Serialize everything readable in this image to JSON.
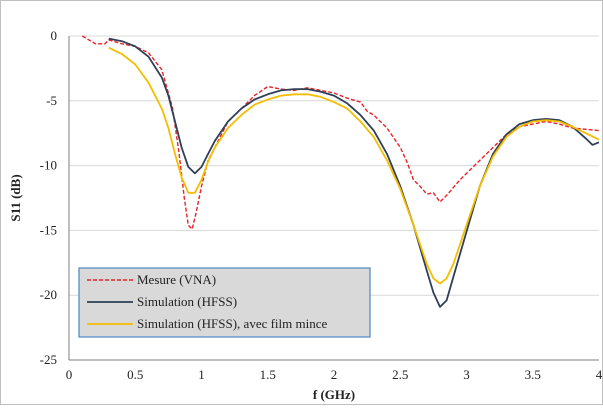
{
  "chart_data": {
    "type": "line",
    "title": "",
    "xlabel": "f (GHz)",
    "ylabel": "S11 (dB)",
    "xlim": [
      0,
      4
    ],
    "ylim": [
      -25,
      0
    ],
    "xticks": [
      "0",
      "0.5",
      "1",
      "1.5",
      "2",
      "2.5",
      "3",
      "3.5",
      "4"
    ],
    "yticks": [
      "0",
      "-5",
      "-10",
      "-15",
      "-20",
      "-25"
    ],
    "grid": "horizontal",
    "legend_position": "lower-left",
    "series": [
      {
        "name": "Mesure (VNA)",
        "color": "#e8222a",
        "style": "dashed",
        "points": [
          [
            0.1,
            0
          ],
          [
            0.15,
            -0.3
          ],
          [
            0.2,
            -0.6
          ],
          [
            0.27,
            -0.6
          ],
          [
            0.3,
            -0.3
          ],
          [
            0.4,
            -0.6
          ],
          [
            0.5,
            -0.8
          ],
          [
            0.6,
            -1.3
          ],
          [
            0.7,
            -2.6
          ],
          [
            0.78,
            -5.5
          ],
          [
            0.83,
            -9
          ],
          [
            0.87,
            -12.5
          ],
          [
            0.9,
            -14.6
          ],
          [
            0.93,
            -14.9
          ],
          [
            0.96,
            -13.6
          ],
          [
            1.0,
            -11.6
          ],
          [
            1.05,
            -9.6
          ],
          [
            1.1,
            -8.6
          ],
          [
            1.15,
            -7.6
          ],
          [
            1.2,
            -6.6
          ],
          [
            1.3,
            -5.6
          ],
          [
            1.4,
            -4.6
          ],
          [
            1.5,
            -3.9
          ],
          [
            1.6,
            -4.1
          ],
          [
            1.7,
            -4.2
          ],
          [
            1.8,
            -4.0
          ],
          [
            1.9,
            -4.2
          ],
          [
            2.0,
            -4.4
          ],
          [
            2.1,
            -4.8
          ],
          [
            2.2,
            -5.1
          ],
          [
            2.25,
            -5.8
          ],
          [
            2.3,
            -6.1
          ],
          [
            2.4,
            -7.1
          ],
          [
            2.5,
            -8.6
          ],
          [
            2.55,
            -9.7
          ],
          [
            2.6,
            -11.1
          ],
          [
            2.65,
            -11.6
          ],
          [
            2.7,
            -12.2
          ],
          [
            2.75,
            -12.1
          ],
          [
            2.8,
            -12.8
          ],
          [
            2.85,
            -12.3
          ],
          [
            2.9,
            -11.7
          ],
          [
            2.95,
            -11.1
          ],
          [
            3.0,
            -10.6
          ],
          [
            3.1,
            -9.6
          ],
          [
            3.2,
            -8.6
          ],
          [
            3.3,
            -7.6
          ],
          [
            3.4,
            -7.0
          ],
          [
            3.5,
            -6.8
          ],
          [
            3.6,
            -6.6
          ],
          [
            3.7,
            -6.8
          ],
          [
            3.8,
            -7.1
          ],
          [
            3.9,
            -7.2
          ],
          [
            4.0,
            -7.3
          ]
        ]
      },
      {
        "name": "Simulation (HFSS)",
        "color": "#2e3f56",
        "style": "solid",
        "points": [
          [
            0.3,
            -0.2
          ],
          [
            0.4,
            -0.4
          ],
          [
            0.5,
            -0.8
          ],
          [
            0.6,
            -1.6
          ],
          [
            0.7,
            -3.2
          ],
          [
            0.75,
            -4.6
          ],
          [
            0.8,
            -6.6
          ],
          [
            0.85,
            -8.6
          ],
          [
            0.9,
            -10.1
          ],
          [
            0.95,
            -10.6
          ],
          [
            1.0,
            -10.1
          ],
          [
            1.05,
            -9.1
          ],
          [
            1.1,
            -8.1
          ],
          [
            1.2,
            -6.6
          ],
          [
            1.3,
            -5.6
          ],
          [
            1.4,
            -4.9
          ],
          [
            1.5,
            -4.5
          ],
          [
            1.6,
            -4.2
          ],
          [
            1.7,
            -4.1
          ],
          [
            1.8,
            -4.1
          ],
          [
            1.9,
            -4.3
          ],
          [
            2.0,
            -4.6
          ],
          [
            2.1,
            -5.2
          ],
          [
            2.2,
            -6.1
          ],
          [
            2.3,
            -7.3
          ],
          [
            2.4,
            -9.1
          ],
          [
            2.5,
            -11.6
          ],
          [
            2.6,
            -14.6
          ],
          [
            2.7,
            -18.1
          ],
          [
            2.75,
            -19.8
          ],
          [
            2.8,
            -20.9
          ],
          [
            2.85,
            -20.4
          ],
          [
            2.9,
            -18.6
          ],
          [
            3.0,
            -15.1
          ],
          [
            3.1,
            -11.6
          ],
          [
            3.2,
            -9.1
          ],
          [
            3.3,
            -7.6
          ],
          [
            3.4,
            -6.8
          ],
          [
            3.5,
            -6.5
          ],
          [
            3.6,
            -6.4
          ],
          [
            3.7,
            -6.5
          ],
          [
            3.8,
            -7.0
          ],
          [
            3.9,
            -7.9
          ],
          [
            3.95,
            -8.4
          ],
          [
            4.0,
            -8.2
          ]
        ]
      },
      {
        "name": "Simulation (HFSS),  avec film mince",
        "color": "#f5bd00",
        "style": "solid",
        "points": [
          [
            0.3,
            -0.9
          ],
          [
            0.4,
            -1.4
          ],
          [
            0.5,
            -2.2
          ],
          [
            0.6,
            -3.6
          ],
          [
            0.7,
            -5.6
          ],
          [
            0.75,
            -7.1
          ],
          [
            0.8,
            -9.1
          ],
          [
            0.85,
            -10.9
          ],
          [
            0.9,
            -12.1
          ],
          [
            0.95,
            -12.1
          ],
          [
            1.0,
            -11.1
          ],
          [
            1.05,
            -9.7
          ],
          [
            1.1,
            -8.6
          ],
          [
            1.2,
            -7.1
          ],
          [
            1.3,
            -6.1
          ],
          [
            1.4,
            -5.3
          ],
          [
            1.5,
            -4.9
          ],
          [
            1.6,
            -4.6
          ],
          [
            1.7,
            -4.5
          ],
          [
            1.8,
            -4.5
          ],
          [
            1.9,
            -4.7
          ],
          [
            2.0,
            -5.1
          ],
          [
            2.1,
            -5.6
          ],
          [
            2.2,
            -6.6
          ],
          [
            2.3,
            -7.8
          ],
          [
            2.4,
            -9.6
          ],
          [
            2.5,
            -11.8
          ],
          [
            2.6,
            -14.6
          ],
          [
            2.7,
            -17.6
          ],
          [
            2.75,
            -18.7
          ],
          [
            2.8,
            -19.1
          ],
          [
            2.85,
            -18.7
          ],
          [
            2.9,
            -17.6
          ],
          [
            3.0,
            -14.6
          ],
          [
            3.1,
            -11.6
          ],
          [
            3.2,
            -9.3
          ],
          [
            3.3,
            -7.8
          ],
          [
            3.4,
            -7.0
          ],
          [
            3.5,
            -6.6
          ],
          [
            3.6,
            -6.5
          ],
          [
            3.7,
            -6.6
          ],
          [
            3.8,
            -7.0
          ],
          [
            3.9,
            -7.5
          ],
          [
            4.0,
            -8.0
          ]
        ]
      }
    ]
  }
}
